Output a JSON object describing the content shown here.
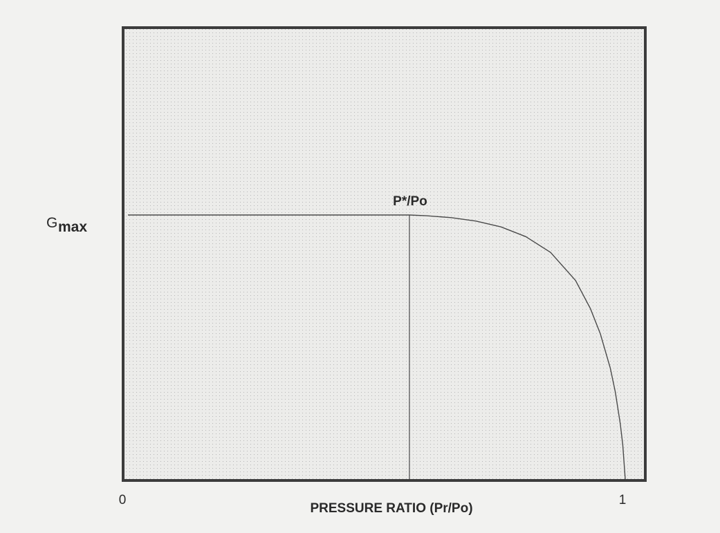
{
  "chart_data": {
    "type": "line",
    "title": "",
    "xlabel": "PRESSURE RATIO (Pr/Po)",
    "ylabel": {
      "main": "G",
      "subscript": "max"
    },
    "xlim": [
      0,
      1.0
    ],
    "ylim": [
      0,
      1.0
    ],
    "grid": true,
    "x_ticks": [
      {
        "value": 0,
        "label": "0"
      },
      {
        "value": 1,
        "label": "1"
      }
    ],
    "series": [
      {
        "x": [
          0,
          0.2,
          0.4,
          0.5,
          0.566,
          0.6,
          0.65,
          0.7,
          0.75,
          0.8,
          0.85,
          0.9,
          0.93,
          0.95,
          0.97,
          0.98,
          0.99,
          0.995,
          1.0
        ],
        "y": [
          1.0,
          1.0,
          1.0,
          1.0,
          1.0,
          0.997,
          0.99,
          0.977,
          0.955,
          0.918,
          0.858,
          0.752,
          0.645,
          0.55,
          0.42,
          0.33,
          0.21,
          0.13,
          0.0
        ]
      }
    ],
    "annotations": [
      {
        "text": "P*/Po",
        "x": 0.566,
        "y": 1.0,
        "type": "vertical-marker"
      }
    ],
    "colors": {
      "background": "#f2f2f0",
      "plot_background": "#ececea",
      "frame": "#3c3c3c",
      "curve": "#4a4a4a",
      "grid_dot": "#b5b5b5",
      "text": "#2a2a2a"
    }
  }
}
